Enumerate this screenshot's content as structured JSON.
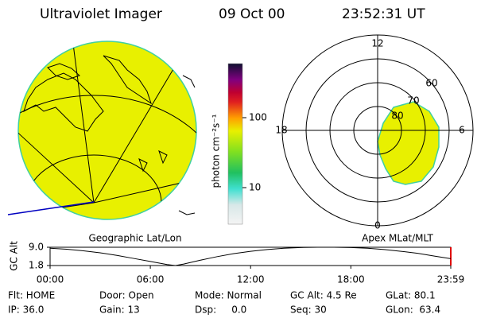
{
  "header": {
    "instrument": "Ultraviolet Imager",
    "date": "09 Oct 00",
    "time": "23:52:31 UT"
  },
  "geo_panel": {
    "label": "Geographic Lat/Lon"
  },
  "colorbar": {
    "label": "photon cm⁻²s⁻¹",
    "ticks": [
      "100",
      "10"
    ]
  },
  "polar_panel": {
    "label": "Apex MLat/MLT",
    "mlt_labels": [
      "12",
      "6",
      "0",
      "18"
    ],
    "lat_labels": [
      "80",
      "70",
      "60"
    ]
  },
  "chart_data": {
    "type": "line",
    "ylabel": "GC Alt",
    "x": [
      0,
      1,
      2,
      3,
      4,
      5,
      6,
      7,
      7.5,
      8,
      9,
      10,
      11,
      12,
      13,
      14,
      15,
      16,
      17,
      18,
      19,
      20,
      21,
      22,
      23,
      23.98
    ],
    "series": [
      {
        "name": "GC Alt",
        "color": "#000000",
        "values": [
          8.6,
          8.2,
          7.6,
          6.8,
          5.8,
          4.6,
          3.4,
          2.2,
          1.8,
          2.4,
          3.9,
          5.3,
          6.5,
          7.4,
          8.1,
          8.6,
          8.9,
          9.0,
          9.0,
          8.9,
          8.6,
          8.1,
          7.4,
          6.6,
          5.5,
          4.5
        ]
      }
    ],
    "ylim": [
      1.8,
      9.0
    ],
    "yticks": [
      {
        "value": 9.0,
        "label": "9.0"
      },
      {
        "value": 1.8,
        "label": "1.8"
      }
    ],
    "xlim": [
      0,
      23.98
    ],
    "xticks": [
      {
        "value": 0,
        "label": "00:00"
      },
      {
        "value": 6,
        "label": "06:00"
      },
      {
        "value": 12,
        "label": "12:00"
      },
      {
        "value": 18,
        "label": "18:00"
      },
      {
        "value": 23.98,
        "label": "23:59"
      }
    ]
  },
  "info": {
    "rows": [
      [
        "Flt: HOME",
        "Door: Open",
        "Mode: Normal",
        "GC Alt: 4.5 Re",
        "GLat: 80.1"
      ],
      [
        "IP: 36.0",
        "Gain: 13",
        "Dsp:     0.0",
        "Seq: 30",
        "GLon:  63.4"
      ]
    ]
  }
}
